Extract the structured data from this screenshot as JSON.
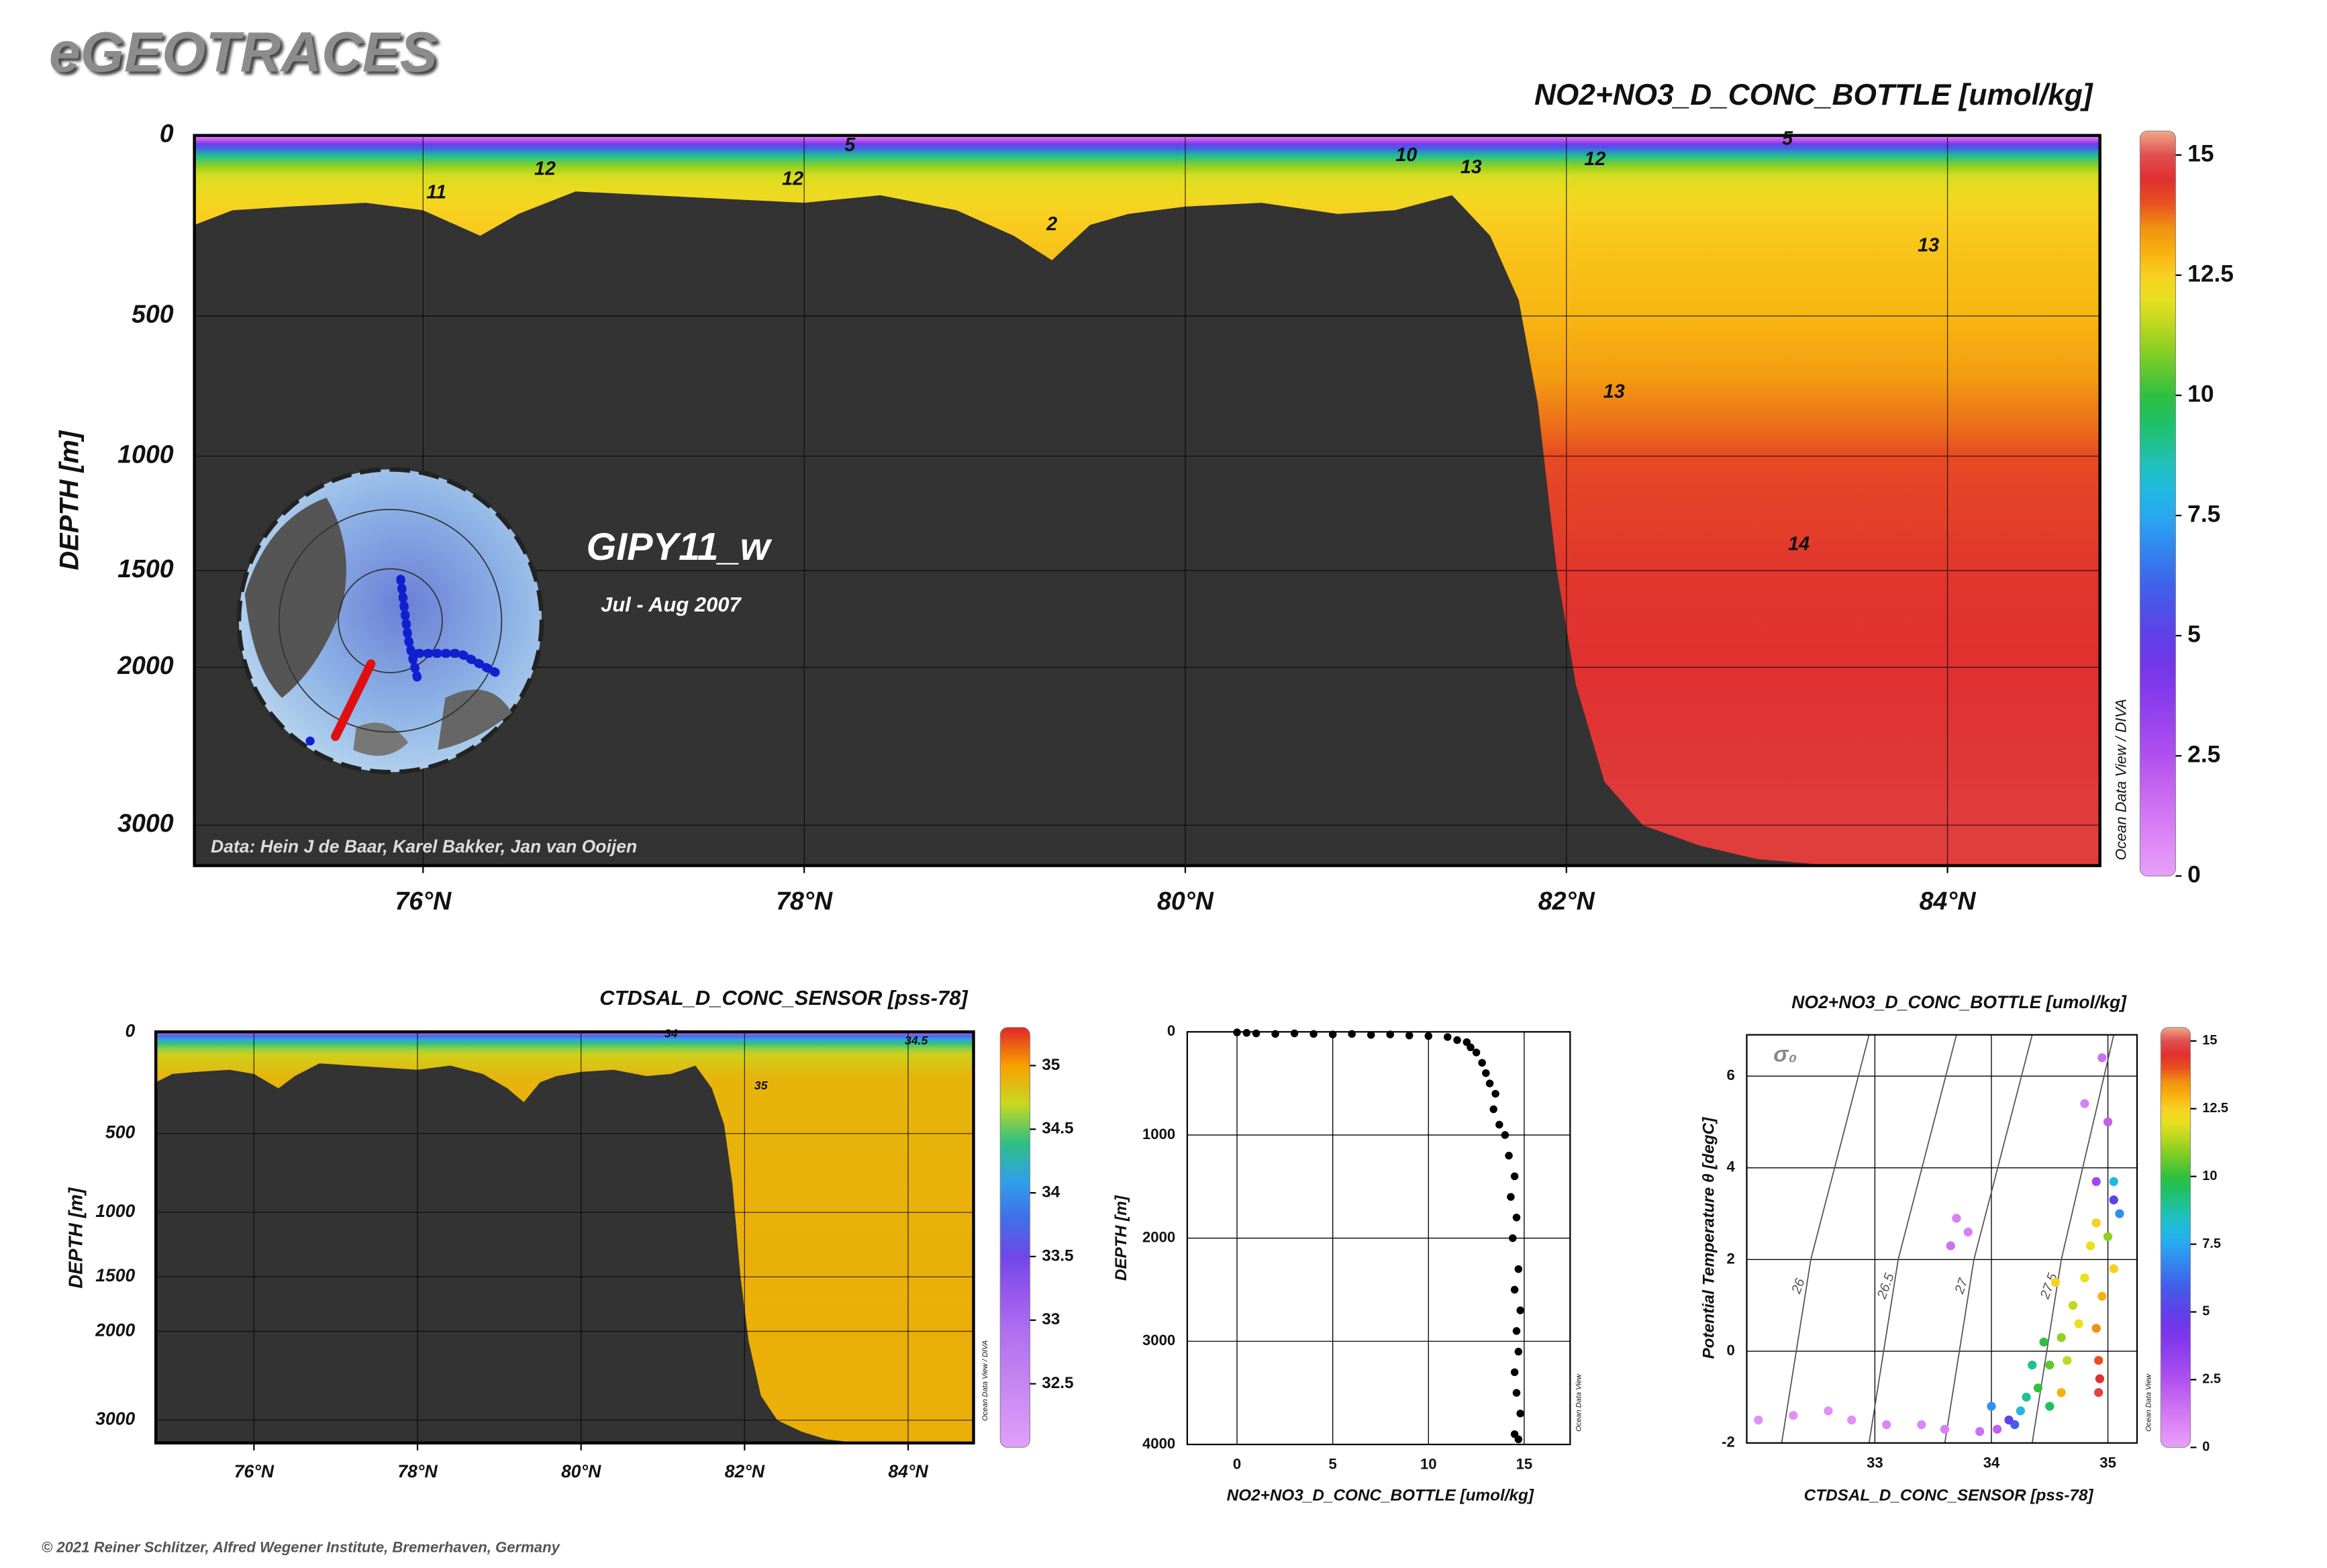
{
  "header": {
    "title": "eGEOTRACES",
    "footer": "© 2021 Reiner Schlitzer, Alfred Wegener Institute, Bremerhaven, Germany"
  },
  "chart_data": [
    {
      "type": "section",
      "title": "NO2+NO3_D_CONC_BOTTLE [umol/kg]",
      "ylabel": "DEPTH [m]",
      "watermark": "Ocean Data View / DIVA",
      "cruise": "GIPY11_w",
      "period": "Jul - Aug 2007",
      "credit": "Data: Hein J de Baar, Karel Bakker, Jan van Ooijen",
      "xlim": [
        74.8,
        84.8
      ],
      "xticks": [
        {
          "value": 76,
          "label": "76°N"
        },
        {
          "value": 78,
          "label": "78°N"
        },
        {
          "value": 80,
          "label": "80°N"
        },
        {
          "value": 82,
          "label": "82°N"
        },
        {
          "value": 84,
          "label": "84°N"
        }
      ],
      "ylim": [
        0,
        3300
      ],
      "yticks": [
        0,
        500,
        1000,
        1500,
        2000,
        3000
      ],
      "grid": true,
      "field": {
        "depth": [
          0,
          10,
          20,
          30,
          50,
          75,
          100,
          150,
          200,
          300,
          500,
          700,
          900,
          1000,
          1500,
          2000,
          2500,
          3000,
          3300
        ],
        "values": [
          1,
          2,
          4,
          6,
          9,
          11,
          11.8,
          12.2,
          12.5,
          12.7,
          12.9,
          13.3,
          13.8,
          14.1,
          14.4,
          14.5,
          14.6,
          14.7,
          14.7
        ]
      },
      "bathymetry": {
        "x": [
          74.8,
          75.0,
          75.3,
          75.7,
          76.0,
          76.3,
          76.5,
          76.8,
          77.2,
          77.6,
          78.0,
          78.4,
          78.8,
          79.1,
          79.3,
          79.5,
          79.7,
          80.0,
          80.4,
          80.8,
          81.1,
          81.4,
          81.6,
          81.75,
          81.85,
          81.95,
          82.05,
          82.2,
          82.4,
          82.7,
          83.0,
          83.4,
          84.0,
          84.8
        ],
        "depth": [
          230,
          190,
          180,
          170,
          190,
          260,
          200,
          140,
          150,
          160,
          170,
          150,
          190,
          260,
          330,
          230,
          200,
          180,
          170,
          200,
          190,
          150,
          260,
          450,
          800,
          1500,
          2100,
          2700,
          3000,
          3150,
          3250,
          3300,
          3300,
          3300
        ]
      },
      "bathymetry_color": "#333333",
      "contour_labels": [
        {
          "label": "5",
          "x": 78.24,
          "depth": 25
        },
        {
          "label": "12",
          "x": 76.64,
          "depth": 84
        },
        {
          "label": "11",
          "x": 76.07,
          "depth": 145
        },
        {
          "label": "12",
          "x": 77.94,
          "depth": 110
        },
        {
          "label": "2",
          "x": 79.3,
          "depth": 230
        },
        {
          "label": "10",
          "x": 81.16,
          "depth": 50
        },
        {
          "label": "13",
          "x": 81.5,
          "depth": 80
        },
        {
          "label": "12",
          "x": 82.15,
          "depth": 60
        },
        {
          "label": "5",
          "x": 83.16,
          "depth": 10
        },
        {
          "label": "13",
          "x": 83.9,
          "depth": 290
        },
        {
          "label": "13",
          "x": 82.25,
          "depth": 760
        },
        {
          "label": "14",
          "x": 83.22,
          "depth": 1380
        }
      ],
      "clim": [
        0,
        15.5
      ],
      "cticks": [
        0,
        2.5,
        5,
        7.5,
        10,
        12.5,
        15
      ],
      "colormap": [
        "#e8a0f8",
        "#e090f8",
        "#d880f5",
        "#cc70f2",
        "#c060f0",
        "#b050f0",
        "#a048f0",
        "#9040ee",
        "#8038ea",
        "#7038e8",
        "#6040e8",
        "#5050e8",
        "#4060ea",
        "#3878ee",
        "#3090f0",
        "#28a8f0",
        "#20b8e0",
        "#20c0c0",
        "#20c090",
        "#20c060",
        "#30c040",
        "#60c830",
        "#90d020",
        "#c0d820",
        "#e8e020",
        "#f8d020",
        "#f8b010",
        "#f09010",
        "#e85020",
        "#e03030",
        "#e05050",
        "#f0a888"
      ]
    },
    {
      "type": "section",
      "title": "CTDSAL_D_CONC_SENSOR [pss-78]",
      "ylabel": "DEPTH [m]",
      "watermark": "Ocean Data View / DIVA",
      "xlim": [
        74.8,
        84.8
      ],
      "xticks": [
        {
          "value": 76,
          "label": "76°N"
        },
        {
          "value": 78,
          "label": "78°N"
        },
        {
          "value": 80,
          "label": "80°N"
        },
        {
          "value": 82,
          "label": "82°N"
        },
        {
          "value": 84,
          "label": "84°N"
        }
      ],
      "ylim": [
        0,
        3300
      ],
      "yticks": [
        0,
        500,
        1000,
        1500,
        2000,
        3000
      ],
      "grid": true,
      "field": {
        "depth": [
          0,
          10,
          20,
          30,
          50,
          75,
          100,
          200,
          300,
          500,
          1000,
          2000,
          3000,
          3300
        ],
        "values": [
          32.5,
          33.2,
          33.8,
          34.1,
          34.4,
          34.6,
          34.75,
          34.88,
          34.9,
          34.9,
          34.91,
          34.92,
          34.92,
          34.92
        ]
      },
      "bathymetry": {
        "x": [
          74.8,
          75.0,
          75.3,
          75.7,
          76.0,
          76.3,
          76.5,
          76.8,
          77.2,
          77.6,
          78.0,
          78.4,
          78.8,
          79.1,
          79.3,
          79.5,
          79.7,
          80.0,
          80.4,
          80.8,
          81.1,
          81.4,
          81.6,
          81.75,
          81.85,
          81.95,
          82.05,
          82.2,
          82.4,
          82.7,
          83.0,
          83.4,
          84.0,
          84.8
        ],
        "depth": [
          230,
          190,
          180,
          170,
          190,
          260,
          200,
          140,
          150,
          160,
          170,
          150,
          190,
          260,
          330,
          230,
          200,
          180,
          170,
          200,
          190,
          150,
          260,
          450,
          800,
          1500,
          2100,
          2700,
          3000,
          3150,
          3250,
          3300,
          3300,
          3300
        ]
      },
      "bathymetry_color": "#333333",
      "contour_labels": [
        {
          "label": "34",
          "x": 81.1,
          "depth": 10
        },
        {
          "label": "34.5",
          "x": 84.1,
          "depth": 40
        },
        {
          "label": "35",
          "x": 82.2,
          "depth": 250
        }
      ],
      "clim": [
        32,
        35.3
      ],
      "cticks": [
        32.5,
        33,
        33.5,
        34,
        34.5,
        35
      ],
      "colormap": [
        "#e0a0f8",
        "#d090f5",
        "#c080f0",
        "#b070f0",
        "#9858ee",
        "#7048e8",
        "#4070e8",
        "#30a0e8",
        "#30c080",
        "#c8d820",
        "#f8a000",
        "#e02828"
      ]
    },
    {
      "type": "scatter",
      "xlabel": "NO2+NO3_D_CONC_BOTTLE [umol/kg]",
      "ylabel": "DEPTH [m]",
      "watermark": "Ocean Data View",
      "xlim": [
        -2.6,
        17.4
      ],
      "xticks": [
        0,
        5,
        10,
        15
      ],
      "ylim": [
        0,
        4000
      ],
      "yticks": [
        0,
        1000,
        2000,
        3000,
        4000
      ],
      "yinvert": true,
      "grid": true,
      "color": "#000000",
      "x": [
        0,
        0.5,
        1,
        2,
        3,
        4,
        5,
        6,
        7,
        8,
        9,
        10,
        11,
        11.5,
        12,
        12.2,
        12.5,
        12.8,
        13,
        13.2,
        13.5,
        13.4,
        13.7,
        14,
        14.2,
        14.5,
        14.3,
        14.6,
        14.4,
        14.7,
        14.5,
        14.8,
        14.6,
        14.7,
        14.5,
        14.6,
        14.8,
        14.5,
        14.7
      ],
      "y": [
        5,
        10,
        15,
        20,
        15,
        20,
        25,
        20,
        30,
        25,
        35,
        40,
        50,
        80,
        100,
        150,
        200,
        300,
        400,
        500,
        600,
        750,
        900,
        1000,
        1200,
        1400,
        1600,
        1800,
        2000,
        2300,
        2500,
        2700,
        2900,
        3100,
        3300,
        3500,
        3700,
        3900,
        3950
      ]
    },
    {
      "type": "scatter",
      "title": "NO2+NO3_D_CONC_BOTTLE [umol/kg]",
      "xlabel": "CTDSAL_D_CONC_SENSOR [pss-78]",
      "ylabel": "Potential Temperature θ [degC]",
      "watermark": "Ocean Data View",
      "density_label": "σ₀",
      "xlim": [
        31.9,
        35.25
      ],
      "xticks": [
        33,
        34,
        35
      ],
      "ylim": [
        -2,
        6.9
      ],
      "yticks": [
        -2,
        0,
        2,
        4,
        6
      ],
      "grid": true,
      "x": [
        32.0,
        32.3,
        32.6,
        32.8,
        33.1,
        33.4,
        33.6,
        33.9,
        34.05,
        33.7,
        33.8,
        33.65,
        34.8,
        34.95,
        34.9,
        35.0,
        35.05,
        34.2,
        34.25,
        34.3,
        34.4,
        34.5,
        34.6,
        34.7,
        34.8,
        34.85,
        34.9,
        35.0,
        35.05,
        34.95,
        34.9,
        34.92,
        34.93,
        34.92,
        34.5,
        34.6,
        34.35,
        34.45,
        34.65,
        34.75,
        35.05,
        35.1,
        34.15,
        34.0,
        34.55
      ],
      "y": [
        -1.5,
        -1.4,
        -1.3,
        -1.5,
        -1.6,
        -1.6,
        -1.7,
        -1.75,
        -1.7,
        2.9,
        2.6,
        2.3,
        5.4,
        6.4,
        3.7,
        5.0,
        3.3,
        -1.6,
        -1.3,
        -1.0,
        -0.8,
        -0.3,
        0.3,
        1.0,
        1.6,
        2.3,
        2.8,
        2.5,
        1.8,
        1.2,
        0.5,
        -0.2,
        -0.6,
        -0.9,
        -1.2,
        -0.9,
        -0.3,
        0.2,
        -0.2,
        0.6,
        3.7,
        3.0,
        -1.5,
        -1.2,
        1.5
      ],
      "color_values": [
        0.5,
        0.5,
        0.5,
        0.5,
        0.8,
        0.8,
        1,
        1.5,
        2,
        1,
        1,
        1.5,
        1,
        1.5,
        3,
        2,
        5,
        6,
        8,
        9,
        10,
        10.5,
        11,
        11.5,
        12,
        12,
        12.5,
        11,
        12.5,
        13,
        13.5,
        14,
        14.5,
        14.8,
        9.5,
        13,
        9,
        10,
        11.5,
        12,
        8,
        7,
        5,
        7,
        12.5
      ],
      "isopycnals": [
        {
          "label": "26",
          "S": [
            32.2,
            32.45,
            32.95
          ],
          "T": [
            -2,
            2,
            6.9
          ]
        },
        {
          "label": "26.5",
          "S": [
            32.95,
            33.2,
            33.7
          ],
          "T": [
            -2,
            2,
            6.9
          ]
        },
        {
          "label": "27",
          "S": [
            33.6,
            33.85,
            34.35
          ],
          "T": [
            -2,
            2,
            6.9
          ]
        },
        {
          "label": "27.5",
          "S": [
            34.35,
            34.6,
            35.05
          ],
          "T": [
            -2,
            2,
            6.9
          ]
        }
      ],
      "clim": [
        0,
        15.5
      ],
      "cticks": [
        0,
        2.5,
        5,
        7.5,
        10,
        12.5,
        15
      ],
      "colormap": [
        "#e8a0f8",
        "#e090f8",
        "#d880f5",
        "#cc70f2",
        "#c060f0",
        "#b050f0",
        "#a048f0",
        "#9040ee",
        "#8038ea",
        "#7038e8",
        "#6040e8",
        "#5050e8",
        "#4060ea",
        "#3878ee",
        "#3090f0",
        "#28a8f0",
        "#20b8e0",
        "#20c0c0",
        "#20c090",
        "#20c060",
        "#30c040",
        "#60c830",
        "#90d020",
        "#c0d820",
        "#e8e020",
        "#f8d020",
        "#f8b010",
        "#f09010",
        "#e85020",
        "#e03030",
        "#e05050",
        "#f0a888"
      ]
    }
  ]
}
